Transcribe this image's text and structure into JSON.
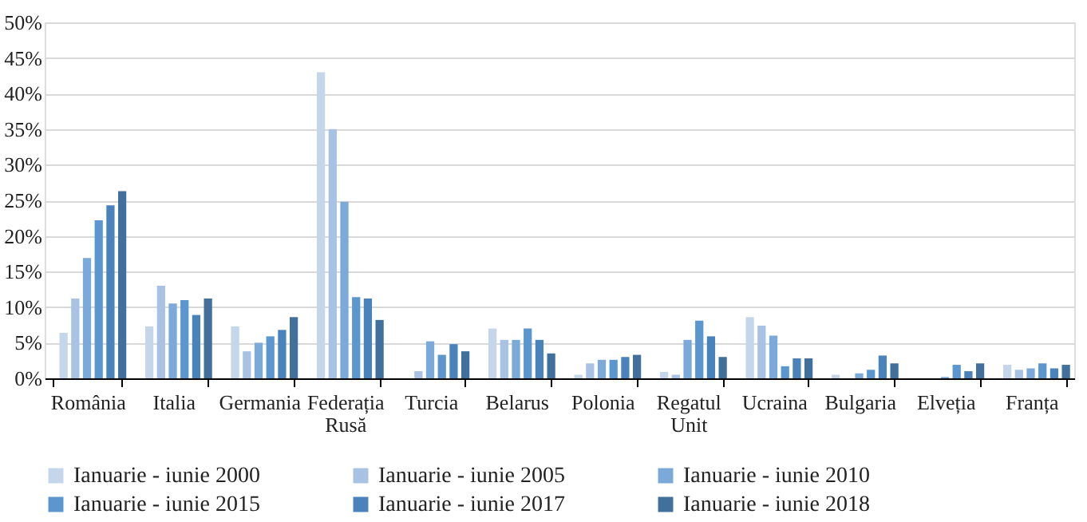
{
  "chart_data": {
    "type": "bar",
    "categories": [
      "România",
      "Italia",
      "Germania",
      "Federația Rusă",
      "Turcia",
      "Belarus",
      "Polonia",
      "Regatul Unit",
      "Ucraina",
      "Bulgaria",
      "Elveția",
      "Franța"
    ],
    "series": [
      {
        "name": "Ianuarie - iunie 2000",
        "color": "#c5d5ea",
        "values": [
          6.4,
          7.3,
          7.3,
          43.0,
          null,
          7.0,
          0.5,
          0.9,
          8.6,
          0.5,
          null,
          1.9
        ]
      },
      {
        "name": "Ianuarie - iunie 2005",
        "color": "#a8c2e4",
        "values": [
          11.2,
          13.0,
          3.8,
          35.0,
          1.0,
          5.4,
          2.1,
          0.5,
          7.4,
          null,
          null,
          1.2
        ]
      },
      {
        "name": "Ianuarie - iunie 2010",
        "color": "#7ba9da",
        "values": [
          16.9,
          10.5,
          5.0,
          24.8,
          5.2,
          5.4,
          2.6,
          5.4,
          6.0,
          0.7,
          0.2,
          1.4
        ]
      },
      {
        "name": "Ianuarie - iunie 2015",
        "color": "#5b96cf",
        "values": [
          22.2,
          11.0,
          5.9,
          11.4,
          3.3,
          7.0,
          2.6,
          8.1,
          1.7,
          1.2,
          1.9,
          2.1
        ]
      },
      {
        "name": "Ianuarie - iunie 2017",
        "color": "#4a82bb",
        "values": [
          24.3,
          8.9,
          6.8,
          11.2,
          4.8,
          5.4,
          3.0,
          5.9,
          2.8,
          3.2,
          1.0,
          1.4
        ]
      },
      {
        "name": "Ianuarie - iunie 2018",
        "color": "#41709c",
        "values": [
          26.3,
          11.2,
          8.6,
          8.2,
          3.8,
          3.5,
          3.3,
          3.0,
          2.8,
          2.1,
          2.1,
          1.9
        ]
      }
    ],
    "ylim": [
      0,
      50
    ],
    "yticks": [
      {
        "value": 0,
        "label": "0%"
      },
      {
        "value": 5,
        "label": "5%"
      },
      {
        "value": 10,
        "label": "10%"
      },
      {
        "value": 15,
        "label": "15%"
      },
      {
        "value": 20,
        "label": "20%"
      },
      {
        "value": 25,
        "label": "25%"
      },
      {
        "value": 30,
        "label": "30%"
      },
      {
        "value": 35,
        "label": "35%"
      },
      {
        "value": 40,
        "label": "40%"
      },
      {
        "value": 45,
        "label": "45%"
      },
      {
        "value": 50,
        "label": "50%"
      }
    ],
    "grid": "y",
    "legend": "bottom"
  }
}
